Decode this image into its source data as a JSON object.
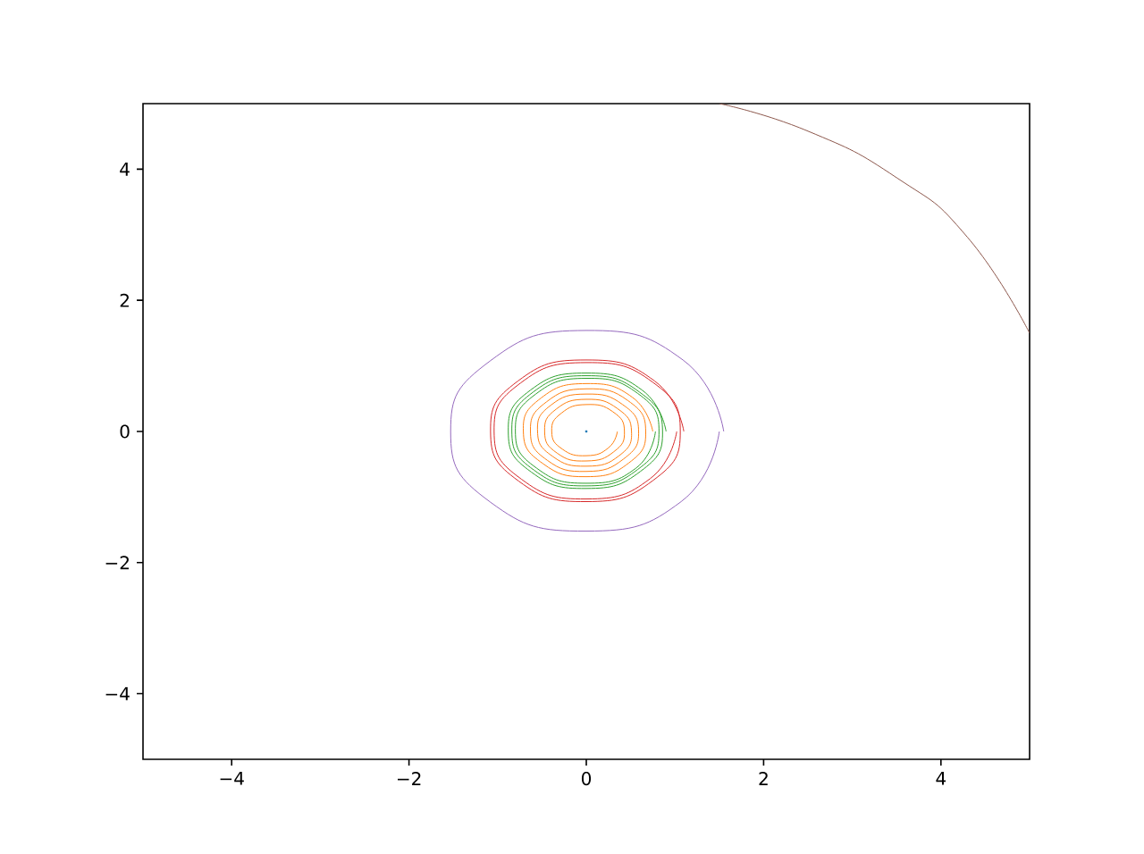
{
  "chart_data": {
    "type": "line",
    "xlim": [
      -5,
      5
    ],
    "ylim": [
      -5,
      5
    ],
    "xticks": [
      {
        "value": -4,
        "label": "−4"
      },
      {
        "value": -2,
        "label": "−2"
      },
      0,
      2,
      4
    ],
    "yticks": [
      {
        "value": -4,
        "label": "−4"
      },
      {
        "value": -2,
        "label": "−2"
      },
      0,
      2,
      4
    ],
    "series": [
      {
        "type": "scatter",
        "marker": "circle",
        "color": "#1f77b4",
        "x": [
          0
        ],
        "values": [
          0
        ]
      },
      {
        "color": "#ff7f0e",
        "x": [
          0.75,
          0.52,
          0,
          -0.51,
          -0.71,
          -0.49,
          0,
          0.48,
          0.67,
          0.47,
          0,
          -0.45,
          -0.63,
          -0.44,
          0,
          0.42,
          0.59,
          0.41,
          0,
          -0.4,
          -0.55,
          -0.38,
          0,
          0.37,
          0.51,
          0.35,
          0,
          -0.34,
          -0.47,
          -0.33,
          0,
          0.31,
          0.43,
          0.3,
          0,
          -0.28,
          -0.39,
          -0.27,
          0,
          0.25,
          0.35
        ],
        "values": [
          0,
          0.52,
          0.73,
          0.51,
          0,
          -0.49,
          -0.69,
          -0.48,
          0,
          0.47,
          0.65,
          0.45,
          0,
          -0.44,
          -0.61,
          -0.42,
          0,
          0.41,
          0.57,
          0.4,
          0,
          -0.38,
          -0.53,
          -0.37,
          0,
          0.35,
          0.49,
          0.34,
          0,
          -0.33,
          -0.45,
          -0.31,
          0,
          0.3,
          0.41,
          0.28,
          0,
          -0.27,
          -0.37,
          -0.25,
          0
        ]
      },
      {
        "color": "#2ca02c",
        "x": [
          0.9,
          0.63,
          0,
          -0.63,
          -0.88,
          -0.62,
          0,
          0.61,
          0.86,
          0.6,
          0,
          -0.6,
          -0.84,
          -0.59,
          0,
          0.58,
          0.82,
          0.58,
          0,
          -0.57,
          -0.8,
          -0.56,
          0,
          0.56,
          0.78
        ],
        "values": [
          0,
          0.63,
          0.89,
          0.63,
          0,
          -0.62,
          -0.87,
          -0.61,
          0,
          0.6,
          0.85,
          0.6,
          0,
          -0.59,
          -0.83,
          -0.58,
          0,
          0.58,
          0.81,
          0.57,
          0,
          -0.56,
          -0.79,
          -0.56,
          0
        ]
      },
      {
        "color": "#d62728",
        "x": [
          1.1,
          0.77,
          0,
          -0.77,
          -1.08,
          -0.76,
          0,
          0.75,
          1.06,
          0.75,
          0,
          -0.74,
          -1.04,
          -0.73,
          0,
          0.72,
          1.02
        ],
        "values": [
          0,
          0.77,
          1.09,
          0.77,
          0,
          -0.76,
          -1.07,
          -0.75,
          0,
          0.75,
          1.05,
          0.74,
          0,
          -0.73,
          -1.03,
          -0.72,
          0
        ]
      },
      {
        "color": "#9467bd",
        "x": [
          1.55,
          1.09,
          0,
          -1.08,
          -1.53,
          -1.08,
          0,
          1.07,
          1.5
        ],
        "values": [
          0,
          1.09,
          1.54,
          1.08,
          0,
          -1.08,
          -1.52,
          -1.07,
          0
        ]
      },
      {
        "color": "#8c564b",
        "x": [
          1.5,
          2.5,
          3.5,
          4.3,
          5
        ],
        "values": [
          5,
          4.58,
          3.87,
          2.96,
          1.5
        ]
      }
    ]
  }
}
